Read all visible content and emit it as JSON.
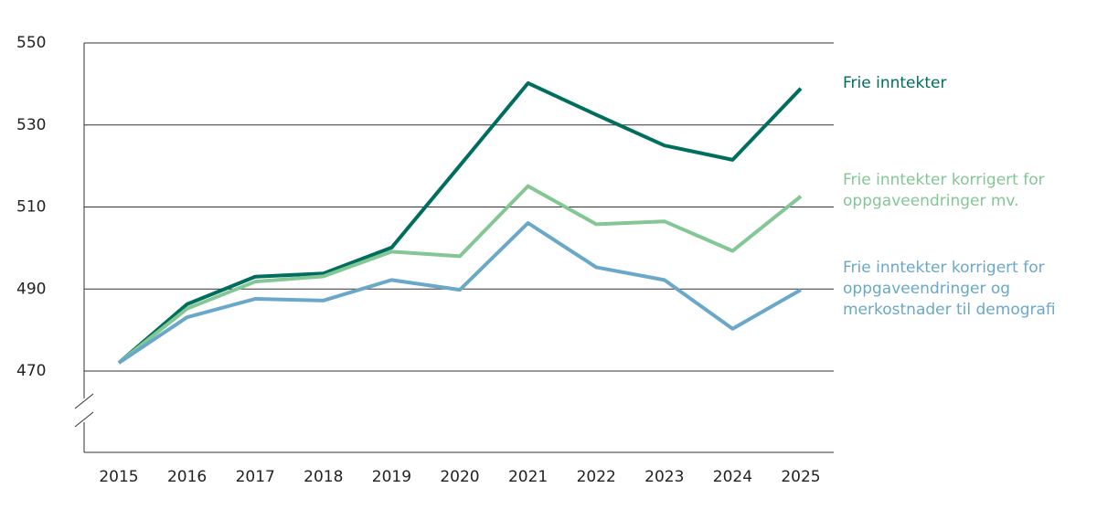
{
  "chart_data": {
    "type": "line",
    "x": [
      2015,
      2016,
      2017,
      2018,
      2019,
      2020,
      2021,
      2022,
      2023,
      2024,
      2025
    ],
    "xticks": [
      2015,
      2016,
      2017,
      2018,
      2019,
      2020,
      2021,
      2022,
      2023,
      2024,
      2025
    ],
    "xlim": [
      2015,
      2025
    ],
    "ylim": [
      470,
      550
    ],
    "yticks": [
      470,
      490,
      510,
      530,
      550
    ],
    "grid": true,
    "series": [
      {
        "name": "Frie inntekter",
        "color": "#006e5f",
        "values": [
          472.0,
          486.3,
          493.0,
          493.8,
          500.1,
          520.1,
          540.2,
          532.5,
          525.0,
          521.5,
          538.9
        ]
      },
      {
        "name": "Frie inntekter korrigert for oppgaveendringer mv.",
        "color": "#84c795",
        "values": [
          472.0,
          485.2,
          491.8,
          493.1,
          499.1,
          498.0,
          515.1,
          505.8,
          506.5,
          499.3,
          512.6
        ]
      },
      {
        "name": "Frie inntekter korrigert for oppgaveendringer og merkostnader til demografi",
        "color": "#6aa8c9",
        "values": [
          472.0,
          483.1,
          487.6,
          487.2,
          492.2,
          489.8,
          506.1,
          495.3,
          492.2,
          480.3,
          489.8
        ]
      }
    ]
  }
}
